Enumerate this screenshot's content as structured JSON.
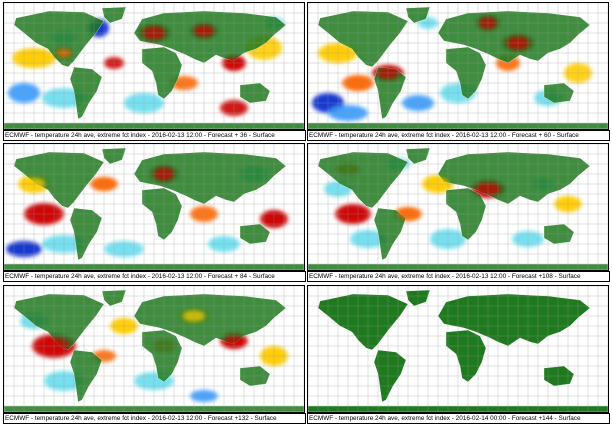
{
  "colors": {
    "land": "#1f7a1f",
    "warm_strong": "#cc0000",
    "warm_mid": "#ff6600",
    "warm_light": "#ffcc00",
    "cold_light": "#66ddee",
    "cold_mid": "#3399ff",
    "cold_strong": "#0022cc",
    "grid": "#999999"
  },
  "panels": [
    {
      "caption": "ECMWF - temperature 24h ave, extreme fct index - 2016-02-13 12:00 - Forecast + 36 - Surface",
      "has_anomaly": true
    },
    {
      "caption": "ECMWF - temperature 24h ave, extreme fct index - 2016-02-13 12:00 - Forecast + 60 - Surface",
      "has_anomaly": true
    },
    {
      "caption": "ECMWF - temperature 24h ave, extreme fct index - 2016-02-13 12:00 - Forecast + 84 - Surface",
      "has_anomaly": true
    },
    {
      "caption": "ECMWF - temperature 24h ave, extreme fct index - 2016-02-13 12:00 - Forecast +108 - Surface",
      "has_anomaly": true
    },
    {
      "caption": "ECMWF - temperature 24h ave, extreme fct index - 2016-02-13 12:00 - Forecast +132 - Surface",
      "has_anomaly": true
    },
    {
      "caption": "ECMWF - temperature 24h ave, extreme fct index - 2016-02-14 00:00 - Forecast +144 - Surface",
      "has_anomaly": false
    }
  ]
}
